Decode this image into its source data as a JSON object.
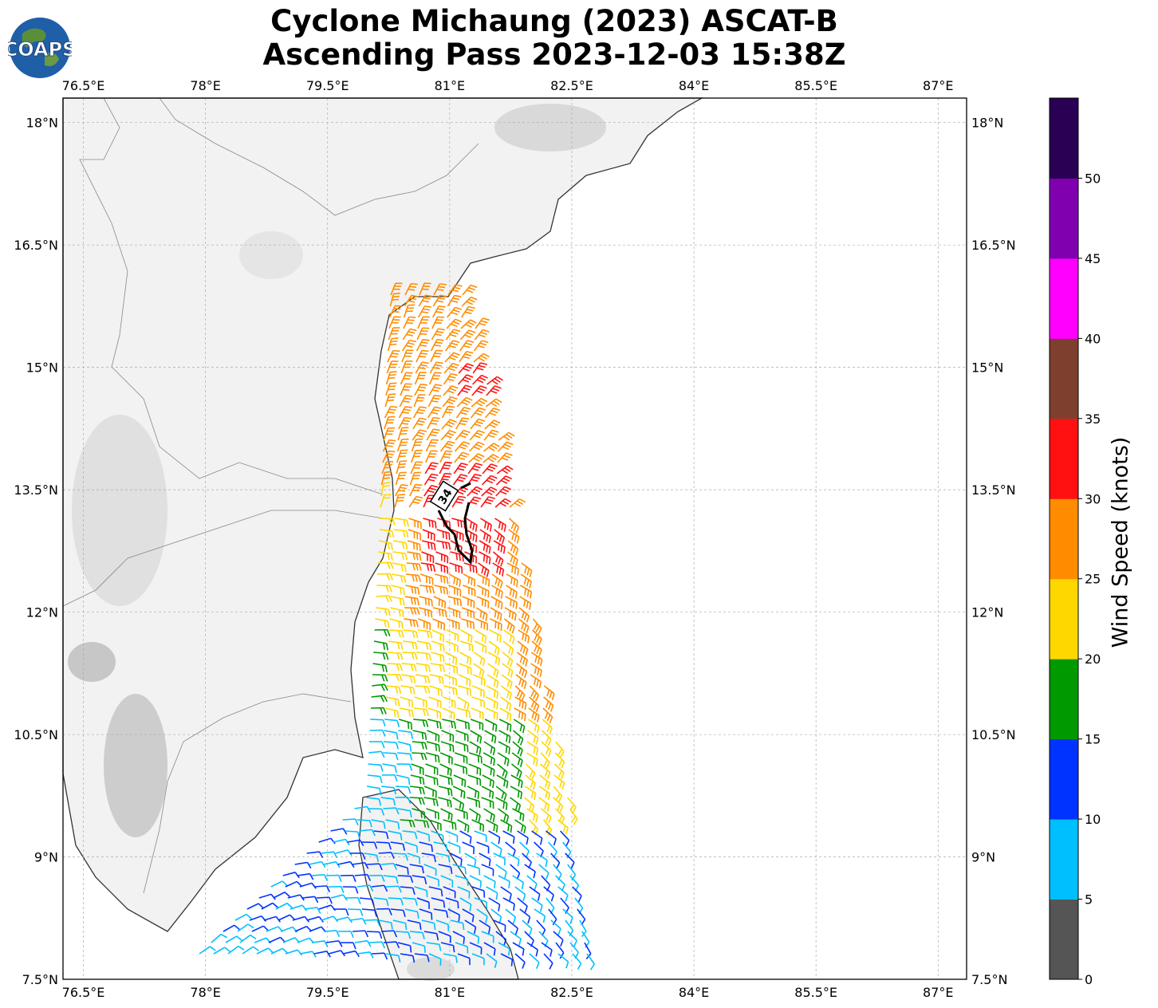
{
  "header": {
    "title_line1": "Cyclone Michaung (2023) ASCAT-B",
    "title_line2": "Ascending Pass 2023-12-03 15:38Z",
    "logo_text": "COAPS"
  },
  "map": {
    "lon_labels": [
      "76.5°E",
      "78°E",
      "79.5°E",
      "81°E",
      "82.5°E",
      "84°E",
      "85.5°E",
      "87°E"
    ],
    "lon_values": [
      76.5,
      78,
      79.5,
      81,
      82.5,
      84,
      85.5,
      87
    ],
    "lat_labels": [
      "18°N",
      "16.5°N",
      "15°N",
      "13.5°N",
      "12°N",
      "10.5°N",
      "9°N",
      "7.5°N"
    ],
    "lat_values": [
      18,
      16.5,
      15,
      13.5,
      12,
      10.5,
      9,
      7.5
    ],
    "lon_range": [
      76.25,
      87.35
    ],
    "lat_range": [
      7.5,
      18.3
    ],
    "wind_radius_label": "34",
    "land_color": "#f2f2f2",
    "ocean_color": "#ffffff",
    "coast_color": "#333333",
    "grid": true
  },
  "colorbar": {
    "label": "Wind Speed (knots)",
    "ticks": [
      "0",
      "5",
      "10",
      "15",
      "20",
      "25",
      "30",
      "35",
      "40",
      "45",
      "50"
    ],
    "colors": [
      "#555555",
      "#00bfff",
      "#0033ff",
      "#009900",
      "#ffd700",
      "#ff8c00",
      "#ff1111",
      "#7f3f2f",
      "#ff00ff",
      "#8000b0",
      "#2a0055"
    ]
  }
}
